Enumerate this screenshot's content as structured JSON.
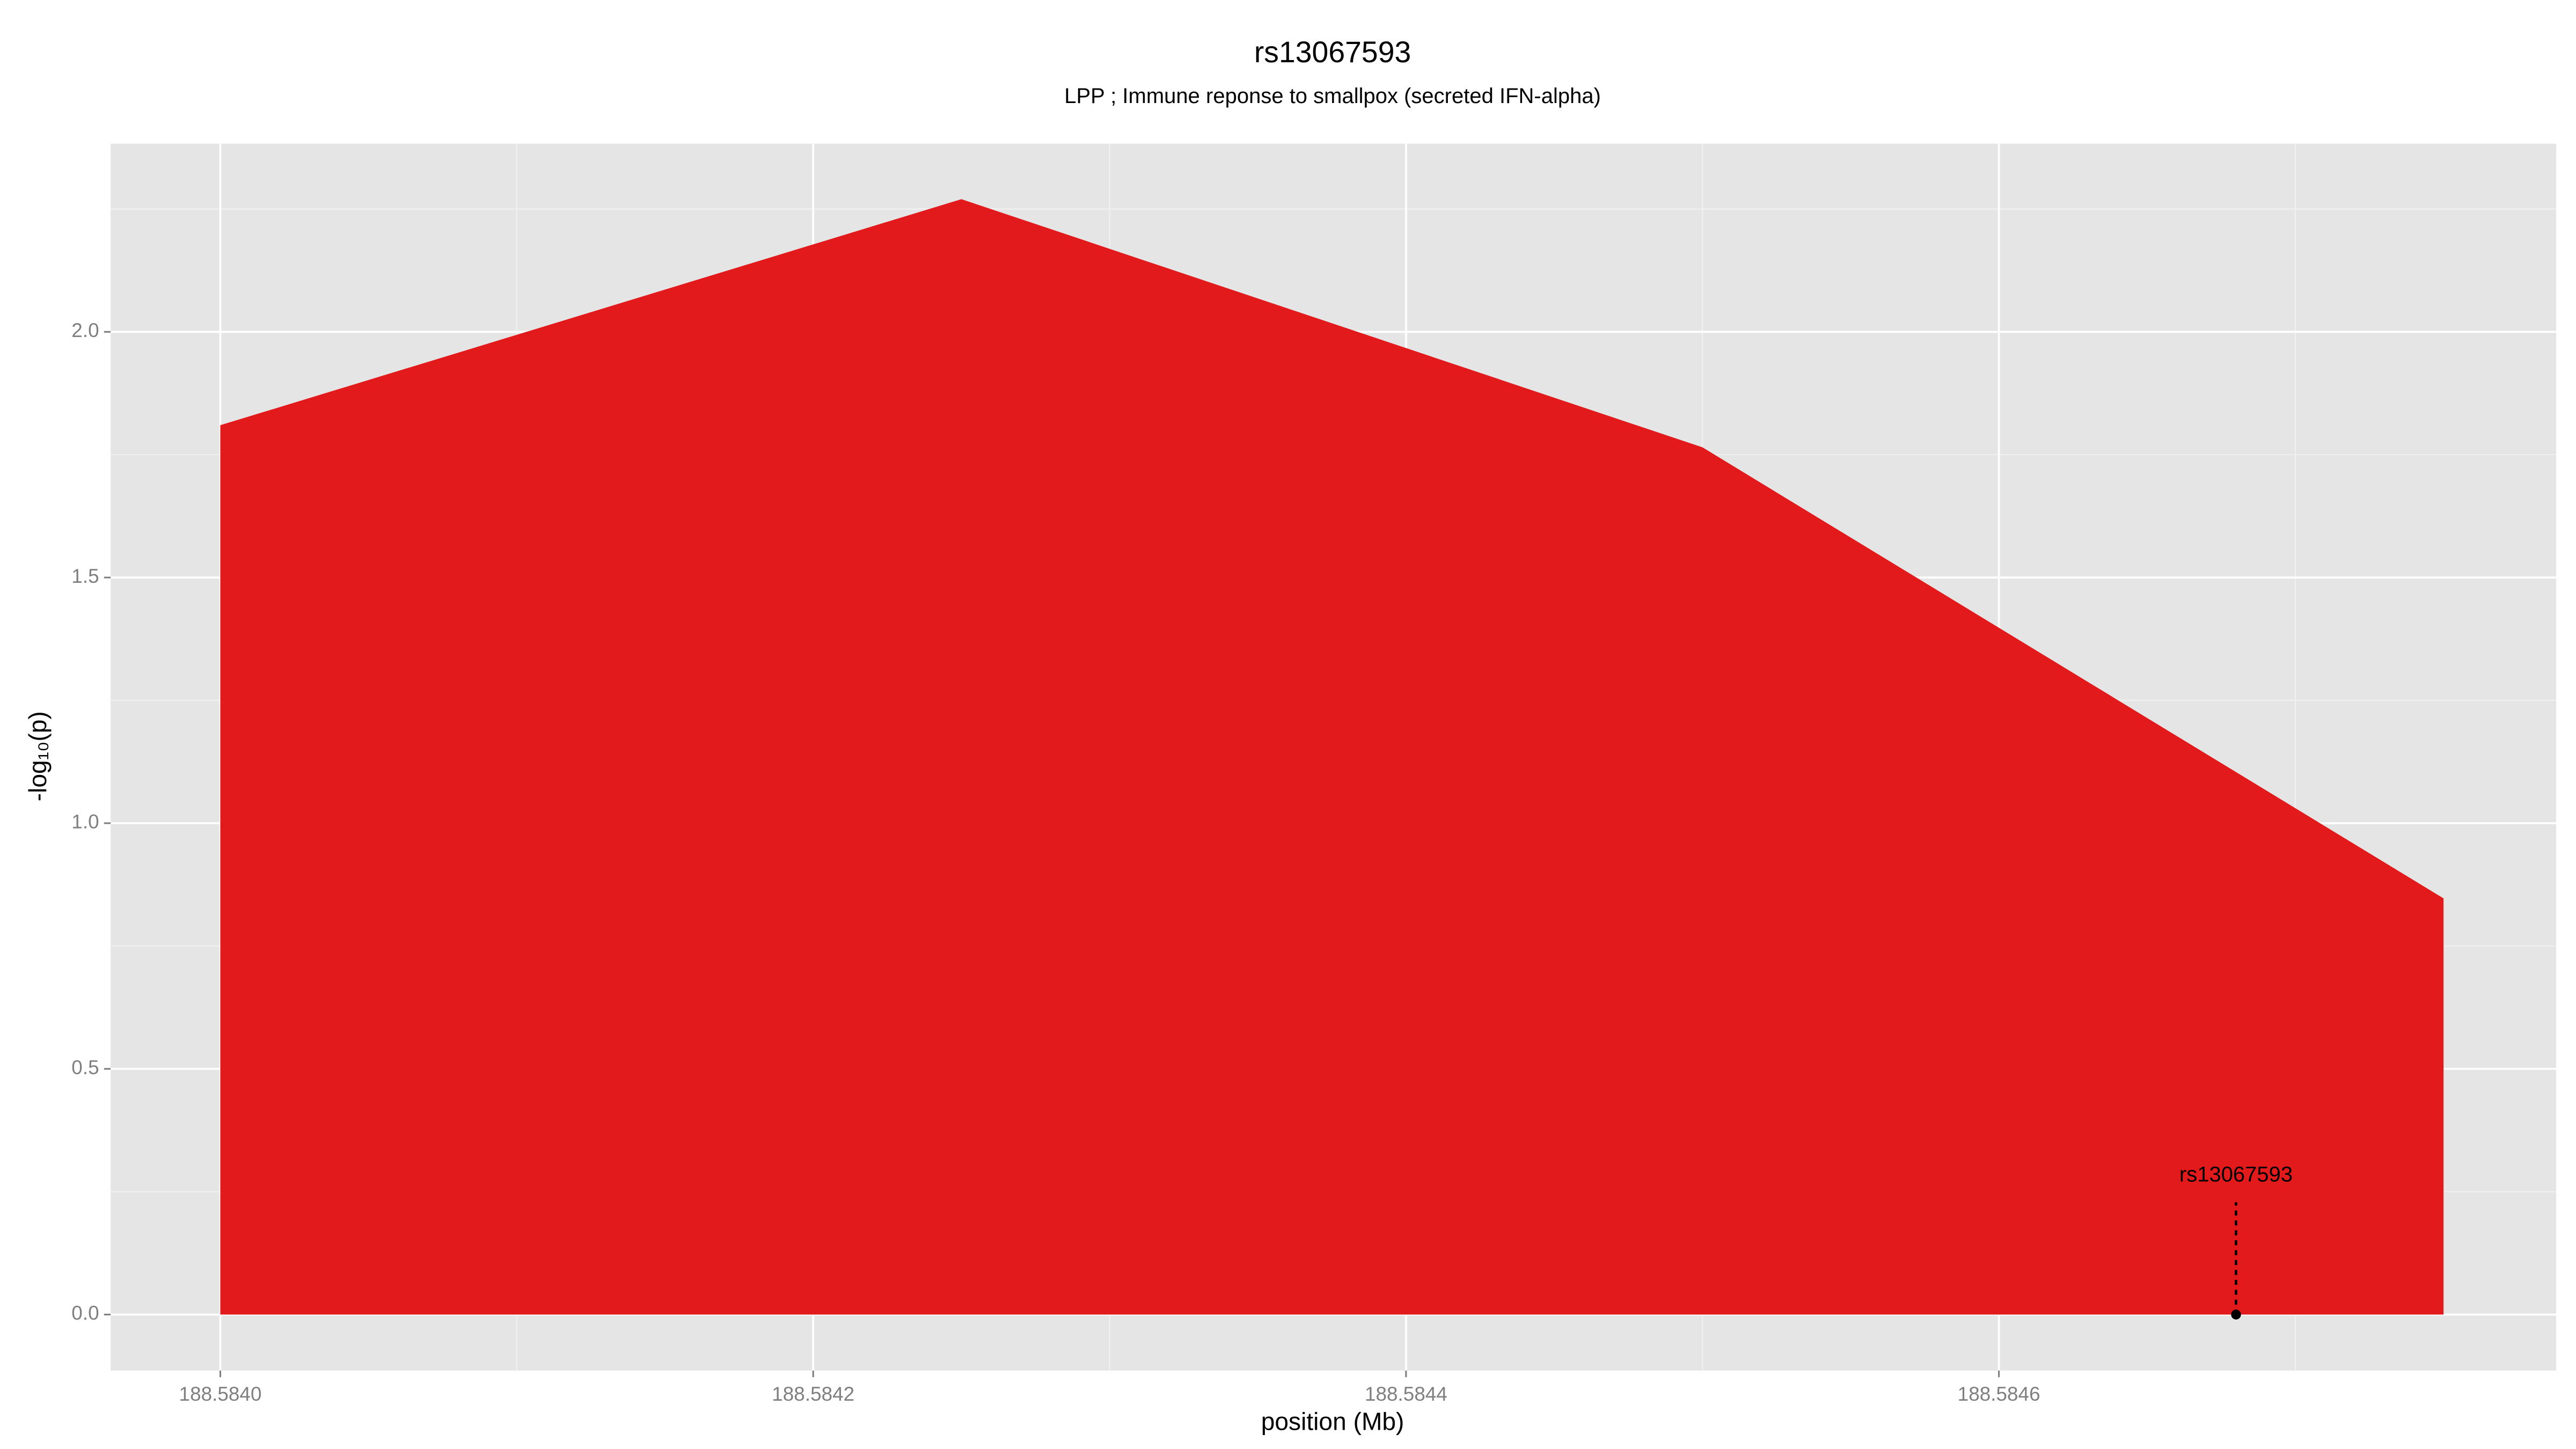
{
  "chart_data": {
    "type": "area",
    "title": "rs13067593",
    "subtitle": "LPP ; Immune reponse to smallpox (secreted IFN-alpha)",
    "x_label": "position (Mb)",
    "y_label": "-log₁₀(p)",
    "x": [
      188.584,
      188.58425,
      188.5845,
      188.58475
    ],
    "values": [
      1.81,
      2.27,
      1.765,
      0.847
    ],
    "color": "#e31a1c",
    "xlim": [
      188.583963,
      188.584788
    ],
    "ylim": [
      -0.114,
      2.383
    ],
    "xticks": [
      {
        "value": 188.584,
        "label": "188.5840"
      },
      {
        "value": 188.5842,
        "label": "188.5842"
      },
      {
        "value": 188.5844,
        "label": "188.5844"
      },
      {
        "value": 188.5846,
        "label": "188.5846"
      }
    ],
    "yticks": [
      {
        "value": 0,
        "label": "0.0"
      },
      0.5,
      {
        "value": 1,
        "label": "1.0"
      },
      1.5,
      {
        "value": 2,
        "label": "2.0"
      }
    ],
    "x_minor_ticks": [
      188.5841,
      188.5843,
      188.5845,
      188.5847
    ],
    "y_minor_ticks": [
      0.25,
      0.75,
      1.25,
      1.75,
      2.25
    ],
    "grid": true,
    "annotation": {
      "label": "rs13067593",
      "x": 188.58468,
      "y": 0
    }
  }
}
